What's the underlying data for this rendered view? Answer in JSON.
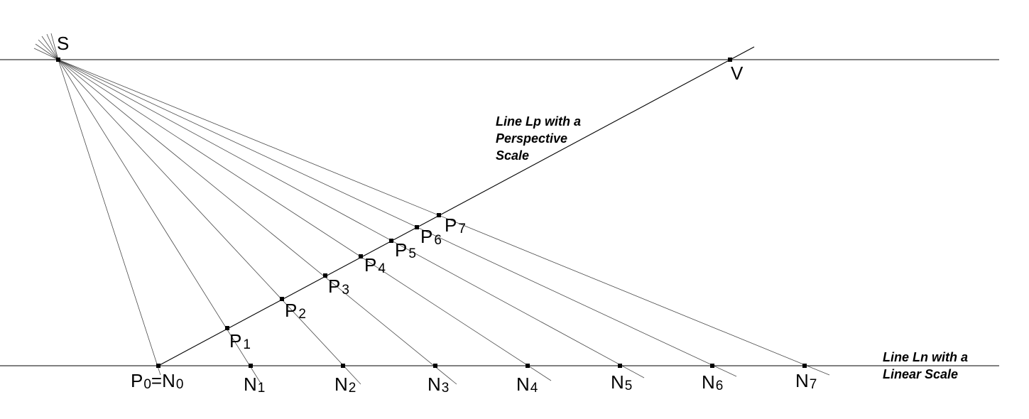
{
  "labels": {
    "S": "S",
    "V": "V",
    "P0N0": {
      "a": "P",
      "a_sub": "0",
      "eq": "=",
      "b": "N",
      "b_sub": "0"
    },
    "P": [
      {
        "base": "P",
        "sub": "1"
      },
      {
        "base": "P",
        "sub": "2"
      },
      {
        "base": "P",
        "sub": "3"
      },
      {
        "base": "P",
        "sub": "4"
      },
      {
        "base": "P",
        "sub": "5"
      },
      {
        "base": "P",
        "sub": "6"
      },
      {
        "base": "P",
        "sub": "7"
      }
    ],
    "N": [
      {
        "base": "N",
        "sub": "1"
      },
      {
        "base": "N",
        "sub": "2"
      },
      {
        "base": "N",
        "sub": "3"
      },
      {
        "base": "N",
        "sub": "4"
      },
      {
        "base": "N",
        "sub": "5"
      },
      {
        "base": "N",
        "sub": "6"
      },
      {
        "base": "N",
        "sub": "7"
      }
    ]
  },
  "notes": {
    "lp": [
      "Line  Lp  with a",
      "Perspective",
      "Scale"
    ],
    "ln": [
      "Line Ln with a",
      "Linear Scale"
    ]
  }
}
